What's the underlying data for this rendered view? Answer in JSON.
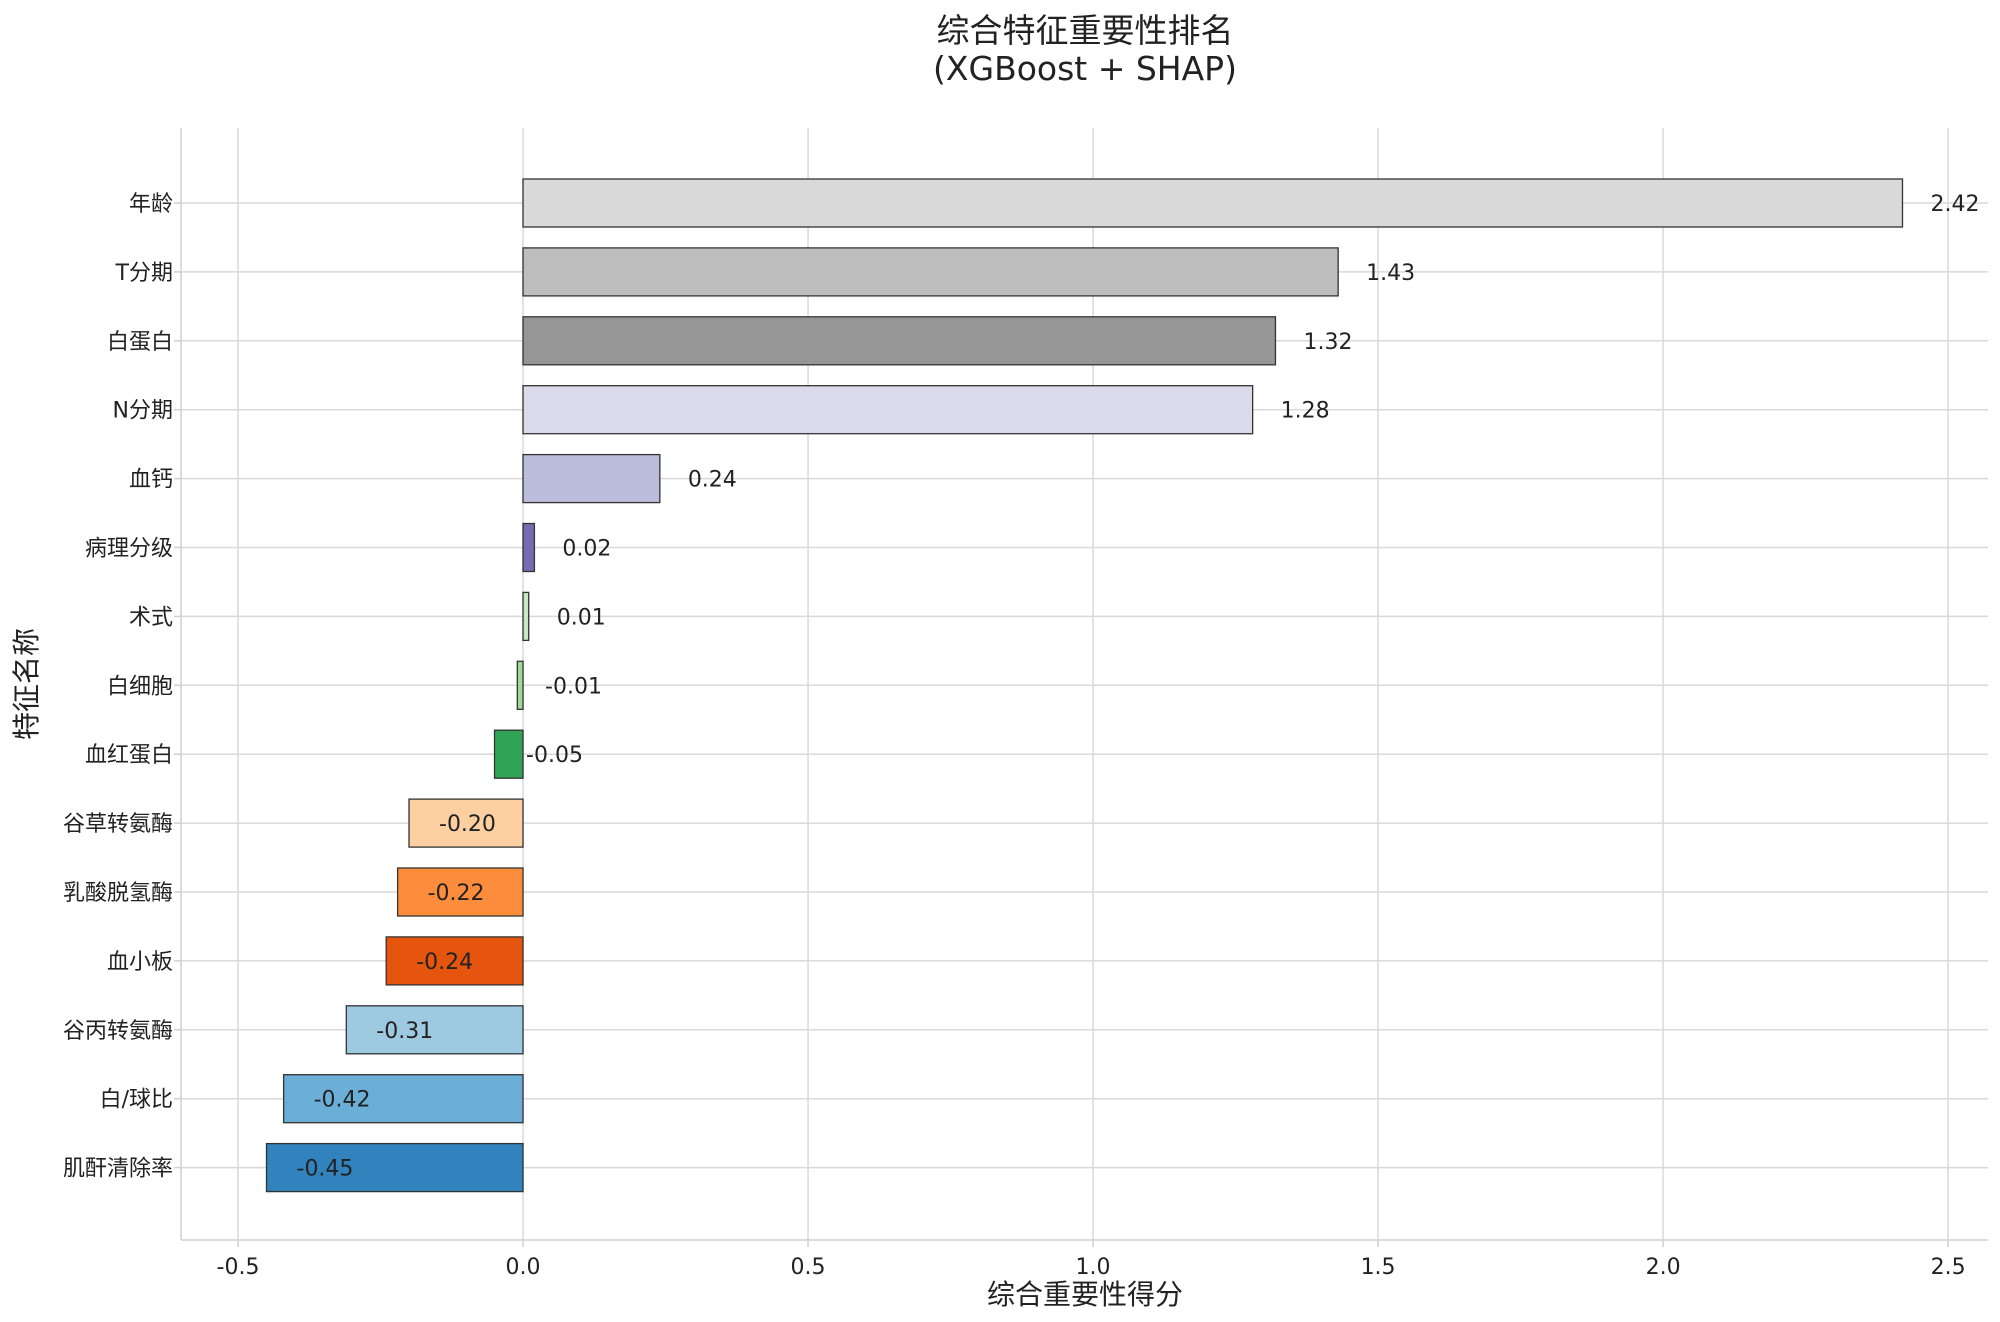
{
  "chart_data": {
    "type": "bar",
    "orientation": "horizontal",
    "title": "综合特征重要性排名",
    "subtitle": "(XGBoost + SHAP)",
    "xlabel": "综合重要性得分",
    "ylabel": "特征名称",
    "xlim": [
      -0.6,
      2.57
    ],
    "xticks": [
      -0.5,
      0.0,
      0.5,
      1.0,
      1.5,
      2.0,
      2.5
    ],
    "xtick_labels": [
      "-0.5",
      "0.0",
      "0.5",
      "1.0",
      "1.5",
      "2.0",
      "2.5"
    ],
    "grid": true,
    "categories": [
      "年龄",
      "T分期",
      "白蛋白",
      "N分期",
      "血钙",
      "病理分级",
      "术式",
      "白细胞",
      "血红蛋白",
      "谷草转氨酶",
      "乳酸脱氢酶",
      "血小板",
      "谷丙转氨酶",
      "白/球比",
      "肌酐清除率"
    ],
    "values": [
      2.42,
      1.43,
      1.32,
      1.28,
      0.24,
      0.02,
      0.01,
      -0.01,
      -0.05,
      -0.2,
      -0.22,
      -0.24,
      -0.31,
      -0.42,
      -0.45
    ],
    "value_labels": [
      "2.42",
      "1.43",
      "1.32",
      "1.28",
      "0.24",
      "0.02",
      "0.01",
      "-0.01",
      "-0.05",
      "-0.20",
      "-0.22",
      "-0.24",
      "-0.31",
      "-0.42",
      "-0.45"
    ],
    "colors": [
      "#d9d9d9",
      "#bdbdbd",
      "#969696",
      "#dadaeb",
      "#bcbddc",
      "#756bb1",
      "#c7e9c0",
      "#a1d99b",
      "#31a354",
      "#fdd0a2",
      "#fd8d3c",
      "#e6550d",
      "#9ecae1",
      "#6baed6",
      "#3182bd"
    ]
  }
}
